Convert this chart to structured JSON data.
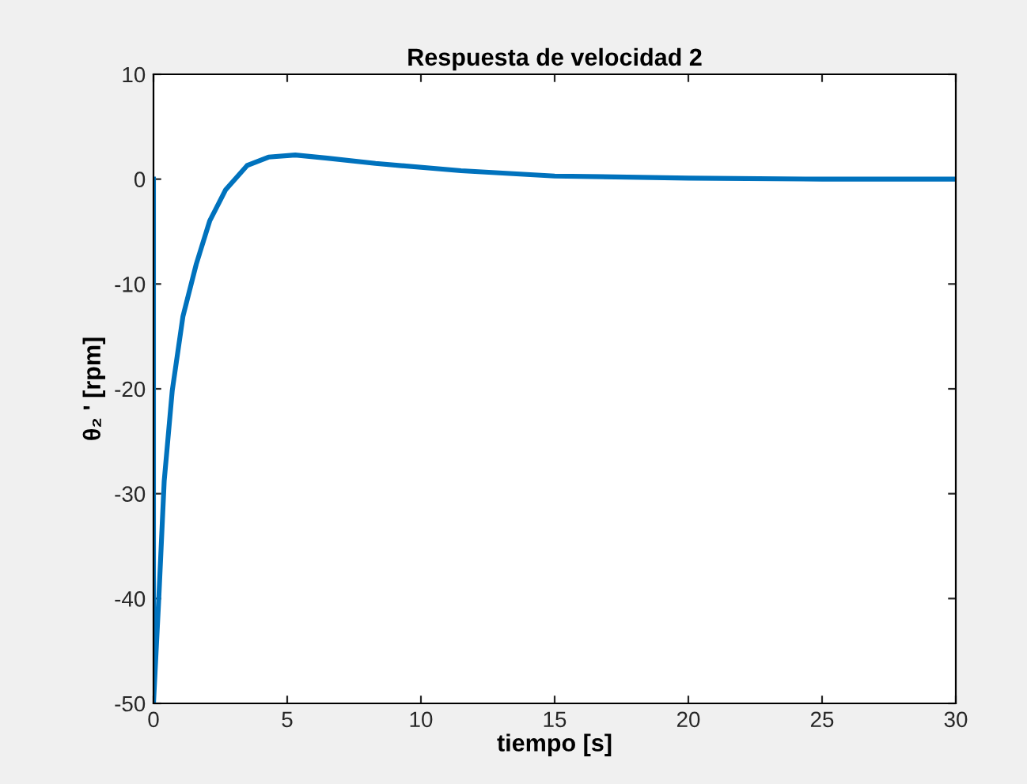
{
  "chart_data": {
    "type": "line",
    "title": "Respuesta de velocidad 2",
    "xlabel": "tiempo [s]",
    "ylabel": "θ₂ ' [rpm]",
    "series": [
      {
        "color": "#0072bd",
        "x": [
          0,
          0,
          0.2,
          0.4,
          0.7,
          1.1,
          1.6,
          2.1,
          2.7,
          3.5,
          4.3,
          5.3,
          6.5,
          8.3,
          11.5,
          15,
          20,
          25,
          30
        ],
        "values": [
          0,
          -50,
          -39.9,
          -28.8,
          -20.2,
          -13.1,
          -8.1,
          -4.0,
          -1.0,
          1.3,
          2.1,
          2.3,
          2.0,
          1.5,
          0.8,
          0.3,
          0.1,
          0,
          0
        ]
      }
    ],
    "xlim": [
      0,
      30
    ],
    "ylim": [
      -50,
      10
    ],
    "xticks": [
      0,
      5,
      10,
      15,
      20,
      25,
      30
    ],
    "yticks": [
      -50,
      -40,
      -30,
      -20,
      -10,
      0,
      10
    ],
    "grid": false,
    "marker": "none",
    "line_style": "solid"
  }
}
